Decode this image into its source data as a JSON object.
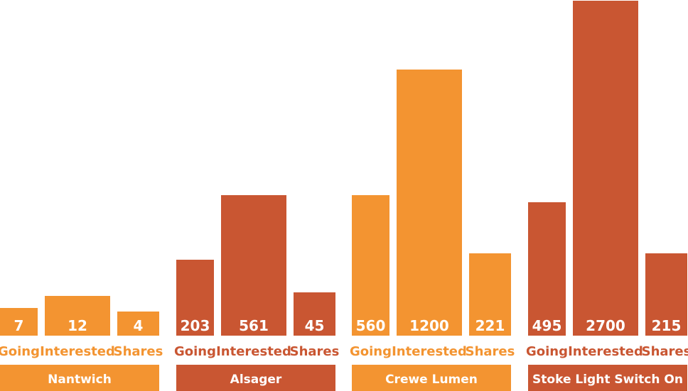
{
  "colors": {
    "orange": "#F39431",
    "rust": "#C95632",
    "white": "#FFFFFF"
  },
  "chart_data": {
    "type": "bar",
    "grid": false,
    "legend": "none",
    "groups": [
      {
        "name": "Nantwich",
        "color": "#F39431",
        "bars": [
          {
            "label": "Going",
            "value": 7
          },
          {
            "label": "Interested",
            "value": 12
          },
          {
            "label": "Shares",
            "value": 4
          }
        ]
      },
      {
        "name": "Alsager",
        "color": "#C95632",
        "bars": [
          {
            "label": "Going",
            "value": 203
          },
          {
            "label": "Interested",
            "value": 561
          },
          {
            "label": "Shares",
            "value": 45
          }
        ]
      },
      {
        "name": "Crewe Lumen",
        "color": "#F39431",
        "bars": [
          {
            "label": "Going",
            "value": 560
          },
          {
            "label": "Interested",
            "value": 1200
          },
          {
            "label": "Shares",
            "value": 221
          }
        ]
      },
      {
        "name": "Stoke Light Switch On",
        "color": "#C95632",
        "bars": [
          {
            "label": "Going",
            "value": 495
          },
          {
            "label": "Interested",
            "value": 2700
          },
          {
            "label": "Shares",
            "value": 215
          }
        ]
      }
    ]
  }
}
